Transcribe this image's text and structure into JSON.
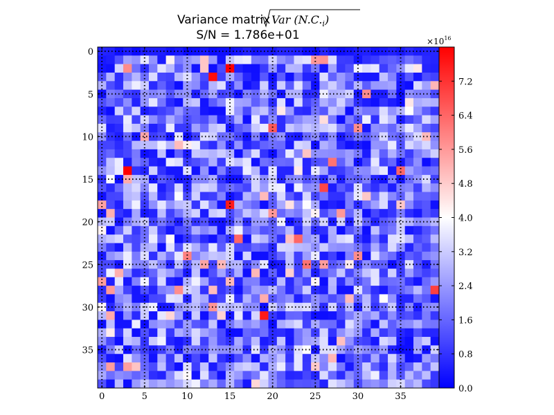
{
  "chart_data": {
    "type": "heatmap",
    "title_prefix": "Variance matrix",
    "title_math": "Var (N.C.",
    "title_math_sub": "i",
    "title_math_close": ")",
    "subtitle": "S/N = 1.786e+01",
    "rows": 40,
    "cols": 40,
    "x_ticks": [
      "0",
      "5",
      "10",
      "15",
      "20",
      "25",
      "30",
      "35"
    ],
    "y_ticks": [
      "0",
      "5",
      "10",
      "15",
      "20",
      "25",
      "30",
      "35"
    ],
    "colorbar": {
      "multiplier": "×10",
      "multiplier_exp": "16",
      "ticks": [
        "0.0",
        "0.8",
        "1.6",
        "2.4",
        "3.2",
        "4.0",
        "4.8",
        "5.6",
        "6.4",
        "7.2"
      ],
      "tick_values": [
        0.0,
        0.8,
        1.6,
        2.4,
        3.2,
        4.0,
        4.8,
        5.6,
        6.4,
        7.2
      ],
      "vmin": 0.0,
      "vmax": 8.0,
      "colormap": [
        "#0000ff",
        "#ffffff",
        "#ff0000"
      ]
    },
    "dotted_grid_every": 5,
    "generator_seed": 1786,
    "hotspots": [
      {
        "row": 2,
        "col": 15,
        "value": 8.0
      },
      {
        "row": 3,
        "col": 13,
        "value": 7.8
      },
      {
        "row": 14,
        "col": 3,
        "value": 8.0
      },
      {
        "row": 18,
        "col": 15,
        "value": 7.6
      },
      {
        "row": 31,
        "col": 19,
        "value": 7.6
      },
      {
        "row": 28,
        "col": 39,
        "value": 7.0
      },
      {
        "row": 16,
        "col": 26,
        "value": 6.9
      },
      {
        "row": 9,
        "col": 20,
        "value": 6.6
      },
      {
        "row": 22,
        "col": 16,
        "value": 6.4
      },
      {
        "row": 22,
        "col": 23,
        "value": 6.4
      },
      {
        "row": 13,
        "col": 27,
        "value": 6.2
      },
      {
        "row": 14,
        "col": 35,
        "value": 6.4
      },
      {
        "row": 24,
        "col": 10,
        "value": 6.0
      },
      {
        "row": 28,
        "col": 1,
        "value": 5.6
      },
      {
        "row": 5,
        "col": 31,
        "value": 5.8
      },
      {
        "row": 25,
        "col": 24,
        "value": 6.2
      },
      {
        "row": 24,
        "col": 30,
        "value": 5.8
      },
      {
        "row": 2,
        "col": 3,
        "value": 5.8
      }
    ]
  }
}
